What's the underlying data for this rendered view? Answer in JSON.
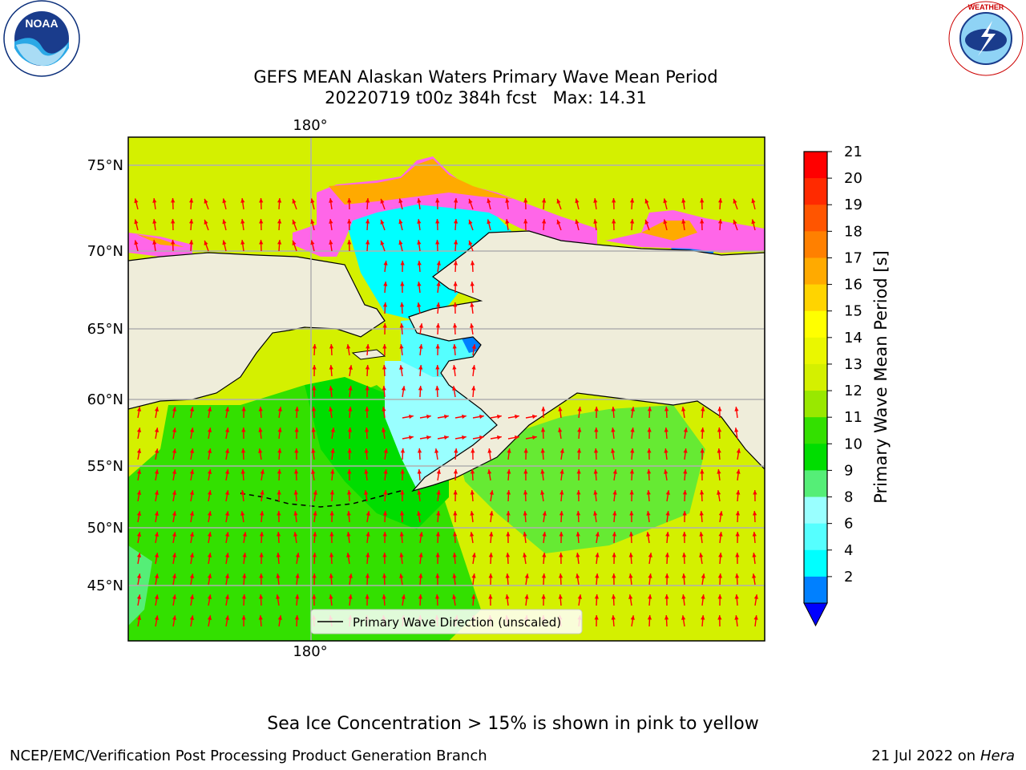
{
  "header": {
    "title_line1": "GEFS MEAN Alaskan Waters Primary Wave Mean Period",
    "title_line2": "20220719 t00z 384h fcst   Max: 14.31"
  },
  "map": {
    "lat_labels": [
      "75°N",
      "70°N",
      "65°N",
      "60°N",
      "55°N",
      "50°N",
      "45°N"
    ],
    "lon_label_top": "180°",
    "lon_label_bottom": "180°",
    "legend_label": "Primary Wave Direction (unscaled)",
    "colors": {
      "land": "#efedda",
      "ocean_green": "#33e000",
      "ocean_yellow": "#d9f200",
      "ice": "#ff66e8",
      "arrow": "#ff0000"
    }
  },
  "colorbar": {
    "label": "Primary Wave Mean Period [s]",
    "ticks": [
      "21",
      "20",
      "19",
      "18",
      "17",
      "16",
      "15",
      "14",
      "13",
      "12",
      "11",
      "10",
      "9",
      "8",
      "6",
      "4",
      "2"
    ],
    "colors": [
      "#ff0000",
      "#ff2a00",
      "#ff5500",
      "#ff8000",
      "#ffaa00",
      "#ffd400",
      "#ffff00",
      "#eaf700",
      "#d4f000",
      "#99e800",
      "#33e000",
      "#00dd00",
      "#55ee77",
      "#99ffff",
      "#55ffff",
      "#00ffff",
      "#0080ff"
    ],
    "extend_color": "#0000ff"
  },
  "footer": {
    "note": "Sea Ice Concentration > 15% is shown in pink to yellow",
    "left": "NCEP/EMC/Verification Post Processing Product Generation Branch",
    "right_date": "21 Jul 2022 on ",
    "right_machine": "Hera"
  },
  "logos": {
    "left_text": "NOAA",
    "right_text": "NATIONAL WEATHER SERVICE"
  }
}
